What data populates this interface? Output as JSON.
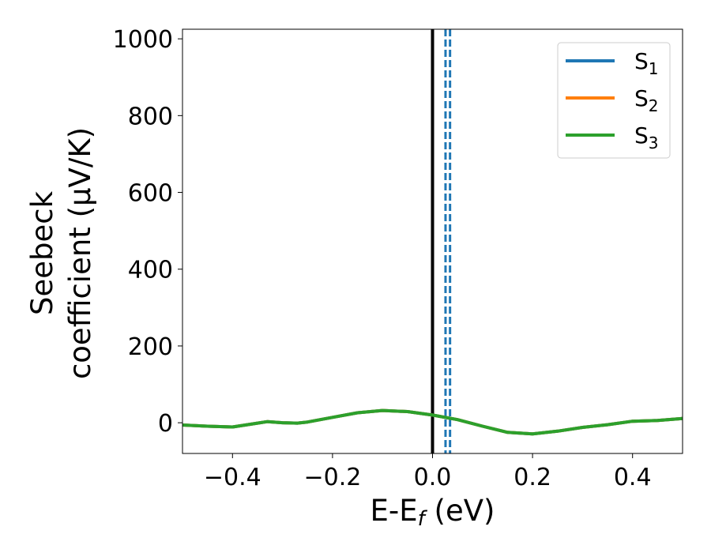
{
  "chart_data": {
    "type": "line",
    "xlabel_main": "E-E",
    "xlabel_sub": "f",
    "xlabel_unit": " (eV)",
    "ylabel_line1": "Seebeck",
    "ylabel_line2": "coefficient  (μV/K)",
    "xlim": [
      -0.5,
      0.5
    ],
    "ylim": [
      -80,
      1025
    ],
    "xticks": [
      -0.4,
      -0.2,
      0.0,
      0.2,
      0.4
    ],
    "xtick_labels": [
      "−0.4",
      "−0.2",
      "0.0",
      "0.2",
      "0.4"
    ],
    "yticks": [
      0,
      200,
      400,
      600,
      800,
      1000
    ],
    "ytick_labels": [
      "0",
      "200",
      "400",
      "600",
      "800",
      "1000"
    ],
    "grid": false,
    "legend_placement": "top-right",
    "x": [
      -0.5,
      -0.45,
      -0.4,
      -0.35,
      -0.33,
      -0.3,
      -0.27,
      -0.25,
      -0.2,
      -0.15,
      -0.1,
      -0.05,
      0.0,
      0.05,
      0.1,
      0.15,
      0.2,
      0.25,
      0.3,
      0.35,
      0.4,
      0.45,
      0.5
    ],
    "series": [
      {
        "name_main": "S",
        "name_sub": "1",
        "color": "#1f77b4",
        "values": [
          -6,
          -9,
          -11,
          -1,
          3,
          0,
          -1,
          2,
          14,
          26,
          32,
          29,
          20,
          8,
          -9,
          -25,
          -29,
          -22,
          -12,
          -5,
          4,
          6,
          11
        ]
      },
      {
        "name_main": "S",
        "name_sub": "2",
        "color": "#ff7f0e",
        "values": [
          -6,
          -9,
          -11,
          -1,
          3,
          0,
          -1,
          2,
          14,
          26,
          32,
          29,
          20,
          8,
          -9,
          -25,
          -29,
          -22,
          -12,
          -5,
          4,
          6,
          11
        ]
      },
      {
        "name_main": "S",
        "name_sub": "3",
        "color": "#2ca02c",
        "values": [
          -6,
          -9,
          -11,
          -1,
          3,
          0,
          -1,
          2,
          14,
          26,
          32,
          29,
          20,
          8,
          -9,
          -25,
          -29,
          -22,
          -12,
          -5,
          4,
          6,
          11
        ]
      }
    ],
    "vertical_lines": [
      {
        "x": 0.0,
        "color": "#000000",
        "style": "solid"
      },
      {
        "x": 0.026,
        "color": "#1f77b4",
        "style": "dashed"
      },
      {
        "x": 0.035,
        "color": "#1f77b4",
        "style": "dashed"
      }
    ]
  }
}
